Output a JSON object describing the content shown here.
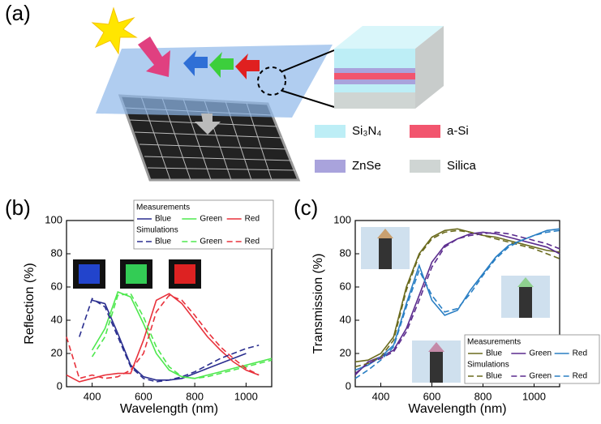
{
  "panel_a": {
    "label": "(a)",
    "legend": [
      {
        "label": "Si₃N₄",
        "color": "#bdeef6"
      },
      {
        "label": "a-Si",
        "color": "#f2556e"
      },
      {
        "label": "ZnSe",
        "color": "#a9a3dc"
      },
      {
        "label": "Silica",
        "color": "#cfd5d3"
      }
    ]
  },
  "chart_data": [
    {
      "type": "line",
      "panel_label": "(b)",
      "x_label": "Wavelength (nm)",
      "y_label": "Reflection (%)",
      "x": [
        300,
        350,
        400,
        450,
        500,
        550,
        600,
        650,
        700,
        750,
        800,
        850,
        900,
        950,
        1000,
        1050,
        1100
      ],
      "xlim": [
        300,
        1100
      ],
      "xticks": [
        400,
        600,
        800,
        1000
      ],
      "ylim": [
        0,
        100
      ],
      "yticks": [
        0,
        20,
        40,
        60,
        80,
        100
      ],
      "series_groups": [
        {
          "name": "Measurements",
          "line_style": "solid",
          "series": [
            {
              "name": "Blue",
              "color": "#2b2f8f",
              "values": [
                null,
                null,
                52,
                50,
                32,
                13,
                6,
                4,
                4,
                5,
                8,
                11,
                14,
                17,
                20,
                null,
                null
              ]
            },
            {
              "name": "Green",
              "color": "#4ee84e",
              "values": [
                null,
                null,
                22,
                35,
                57,
                54,
                38,
                20,
                10,
                6,
                5,
                7,
                9,
                11,
                13,
                15,
                17
              ]
            },
            {
              "name": "Red",
              "color": "#e8323c",
              "values": [
                7,
                3,
                5,
                7,
                8,
                8,
                28,
                52,
                56,
                50,
                40,
                30,
                22,
                15,
                10,
                7,
                null
              ]
            }
          ]
        },
        {
          "name": "Simulations",
          "line_style": "dashed",
          "series": [
            {
              "name": "Blue",
              "color": "#2b2f8f",
              "values": [
                null,
                30,
                53,
                48,
                30,
                12,
                5,
                3,
                4,
                6,
                9,
                13,
                17,
                20,
                23,
                25,
                null
              ]
            },
            {
              "name": "Green",
              "color": "#4ee84e",
              "values": [
                null,
                null,
                18,
                30,
                55,
                56,
                42,
                24,
                12,
                6,
                5,
                6,
                8,
                10,
                12,
                14,
                16
              ]
            },
            {
              "name": "Red",
              "color": "#e8323c",
              "values": [
                30,
                5,
                7,
                5,
                6,
                10,
                20,
                45,
                55,
                52,
                43,
                33,
                24,
                17,
                11,
                7,
                null
              ]
            }
          ]
        }
      ]
    },
    {
      "type": "line",
      "panel_label": "(c)",
      "x_label": "Wavelength (nm)",
      "y_label": "Transmission (%)",
      "x": [
        300,
        350,
        400,
        450,
        500,
        550,
        600,
        650,
        700,
        750,
        800,
        850,
        900,
        950,
        1000,
        1050,
        1100
      ],
      "xlim": [
        300,
        1100
      ],
      "xticks": [
        400,
        600,
        800,
        1000
      ],
      "ylim": [
        0,
        100
      ],
      "yticks": [
        0,
        20,
        40,
        60,
        80,
        100
      ],
      "series_groups": [
        {
          "name": "Measurements",
          "line_style": "solid",
          "series": [
            {
              "name": "Blue",
              "color": "#6b6b1e",
              "values": [
                15,
                16,
                20,
                30,
                60,
                80,
                90,
                94,
                95,
                93,
                91,
                90,
                88,
                86,
                84,
                82,
                81
              ]
            },
            {
              "name": "Green",
              "color": "#5b2c8e",
              "values": [
                7,
                15,
                18,
                22,
                35,
                55,
                75,
                85,
                89,
                92,
                93,
                92,
                90,
                88,
                86,
                84,
                80
              ]
            },
            {
              "name": "Red",
              "color": "#2a7fc4",
              "values": [
                10,
                13,
                18,
                25,
                50,
                73,
                52,
                43,
                46,
                58,
                68,
                78,
                85,
                88,
                91,
                94,
                95
              ]
            }
          ]
        },
        {
          "name": "Simulations",
          "line_style": "dashed",
          "series": [
            {
              "name": "Blue",
              "color": "#6b6b1e",
              "values": [
                12,
                14,
                18,
                28,
                58,
                79,
                89,
                93,
                94,
                93,
                91,
                89,
                87,
                85,
                83,
                80,
                77
              ]
            },
            {
              "name": "Green",
              "color": "#5b2c8e",
              "values": [
                8,
                14,
                17,
                21,
                33,
                52,
                72,
                84,
                89,
                91,
                92,
                93,
                92,
                90,
                88,
                86,
                83
              ]
            },
            {
              "name": "Red",
              "color": "#2a7fc4",
              "values": [
                5,
                10,
                16,
                24,
                48,
                70,
                55,
                45,
                47,
                56,
                67,
                77,
                84,
                88,
                91,
                93,
                94
              ]
            }
          ]
        }
      ]
    }
  ]
}
